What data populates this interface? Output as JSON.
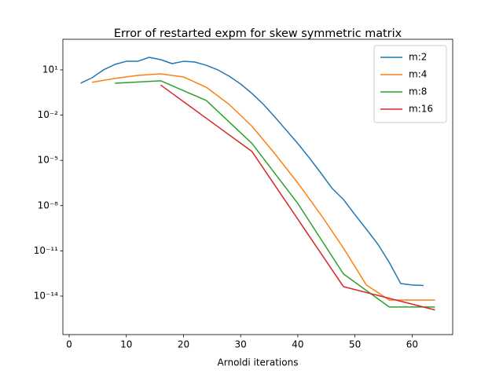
{
  "chart_data": {
    "type": "line",
    "title": "Error of restarted expm for skew symmetric matrix",
    "x_label": "Arnoldi iterations",
    "y_scale": "log",
    "legend_position": "upper right",
    "xlim": [
      -1.1,
      67.1
    ],
    "xticks": [
      0,
      10,
      20,
      30,
      40,
      50,
      60
    ],
    "ylim": [
      2.8e-17,
      1070
    ],
    "yticks": [
      {
        "value": 10,
        "label": "10¹"
      },
      {
        "value": 0.01,
        "label": "10⁻²"
      },
      {
        "value": 1e-05,
        "label": "10⁻⁵"
      },
      {
        "value": 1e-08,
        "label": "10⁻⁸"
      },
      {
        "value": 1e-11,
        "label": "10⁻¹¹"
      },
      {
        "value": 1e-14,
        "label": "10⁻¹⁴"
      }
    ],
    "series": [
      {
        "name": "m:2",
        "color": "#1f77b4",
        "x": [
          2,
          4,
          6,
          8,
          10,
          12,
          14,
          16,
          18,
          20,
          22,
          24,
          26,
          28,
          30,
          32,
          34,
          36,
          38,
          40,
          42,
          44,
          46,
          48,
          50,
          52,
          54,
          56,
          58,
          60,
          62
        ],
        "values": [
          1.3,
          3,
          10,
          23,
          37,
          37,
          68,
          48,
          26,
          37,
          33,
          20,
          10,
          3.8,
          1.15,
          0.27,
          0.051,
          0.0074,
          0.00098,
          0.00013,
          1.5e-05,
          1.5e-06,
          1.4e-07,
          2.5e-08,
          2.5e-09,
          2.7e-10,
          2.8e-11,
          1.7e-12,
          6.8e-14,
          5.4e-14,
          5e-14
        ]
      },
      {
        "name": "m:4",
        "color": "#ff7f0e",
        "x": [
          4,
          8,
          12,
          16,
          20,
          24,
          28,
          32,
          36,
          40,
          44,
          48,
          52,
          56,
          60,
          64
        ],
        "values": [
          1.5,
          2.7,
          4.3,
          5.5,
          3.4,
          0.7,
          0.051,
          0.0018,
          2.7e-05,
          3.2e-07,
          2.6e-09,
          1.5e-11,
          5.4e-14,
          5.5e-15,
          5.5e-15,
          5.5e-15
        ]
      },
      {
        "name": "m:8",
        "color": "#2ca02c",
        "x": [
          8,
          16,
          24,
          32,
          40,
          48,
          56,
          64
        ],
        "values": [
          1.3,
          1.9,
          0.093,
          0.00013,
          1.4e-08,
          2.9e-13,
          1.9e-15,
          1.9e-15
        ]
      },
      {
        "name": "m:16",
        "color": "#d62728",
        "x": [
          16,
          32,
          48,
          64
        ],
        "values": [
          1.0,
          3.8e-05,
          4.2e-14,
          1.2e-15
        ]
      }
    ]
  }
}
